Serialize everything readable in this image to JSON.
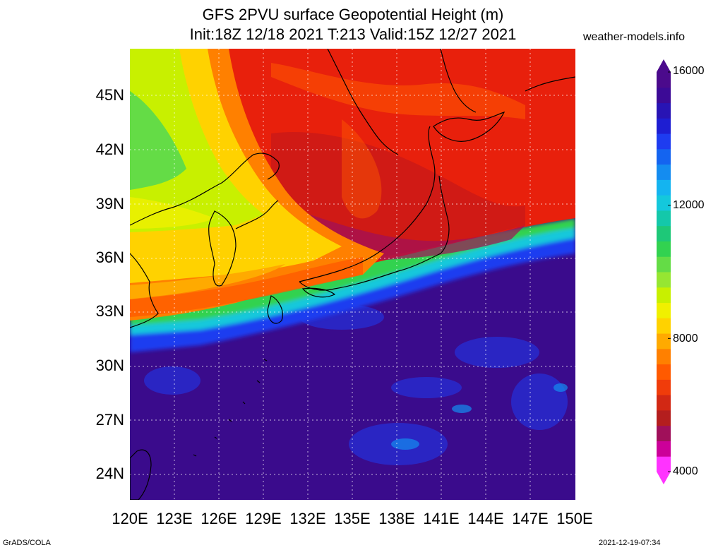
{
  "title": "GFS 2PVU surface Geopotential Height (m)",
  "subtitle": "Init:18Z 12/18 2021 T:213 Valid:15Z 12/27 2021",
  "site": "weather-models.info",
  "lat_labels": [
    "45N",
    "42N",
    "39N",
    "36N",
    "33N",
    "30N",
    "27N",
    "24N"
  ],
  "lon_labels": [
    "120E",
    "123E",
    "126E",
    "129E",
    "132E",
    "135E",
    "138E",
    "141E",
    "144E",
    "147E",
    "150E"
  ],
  "colorbar": {
    "labels": [
      "16000",
      "12000",
      "8000",
      "4000"
    ],
    "colors": [
      "#ff33ff",
      "#cc0099",
      "#a0105a",
      "#b41e1e",
      "#d22814",
      "#f03c0a",
      "#ff5a00",
      "#ff8000",
      "#ffaa00",
      "#ffd200",
      "#f0f000",
      "#c8f000",
      "#96e632",
      "#64dc46",
      "#32d250",
      "#1ec878",
      "#14c8aa",
      "#14c8dc",
      "#14b4f0",
      "#148cf0",
      "#1464f0",
      "#1e3cf0",
      "#1e1ed2",
      "#2814b4",
      "#3c0a96",
      "#4b0a8c"
    ]
  },
  "footer_left": "GrADS/COLA",
  "footer_right": "2021-12-19-07:34"
}
